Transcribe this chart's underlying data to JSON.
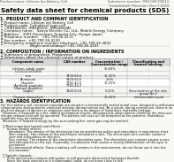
{
  "page_bg": "#f8f8f5",
  "header_left": "Product name: Lithium Ion Battery Cell",
  "header_right": "Substance number: 999-049-00610\nEstablished / Revision: Dec.7.2010",
  "title": "Safety data sheet for chemical products (SDS)",
  "s1_title": "1. PRODUCT AND COMPANY IDENTIFICATION",
  "s1_lines": [
    "・ Product name: Lithium Ion Battery Cell",
    "・ Product code: Cylindrical-type cell",
    "    (IHR18650U, IHR18650L, IHR18650A)",
    "・ Company name:   Sanyo Electric Co., Ltd., Mobile Energy Company",
    "・ Address:   2001 Kamionten, Sumoto-City, Hyogo, Japan",
    "・ Telephone number:   +81-799-26-4111",
    "・ Fax number:  +81-799-26-4120",
    "・ Emergency telephone number (daytime): +81-799-26-3842",
    "                          (Night and holidays) +81-799-26-4101"
  ],
  "s2_title": "2. COMPOSITION / INFORMATION ON INGREDIENTS",
  "s2_prep": "・ Substance or preparation: Preparation",
  "s2_info": "・ Information about the chemical nature of product:",
  "th": [
    "Component name",
    "CAS number",
    "Concentration /\nConcentration range",
    "Classification and\nhazard labeling"
  ],
  "tr": [
    [
      "Lithium cobalt oxide\n(LiCoO₂/CoO(OH))",
      "-",
      "30-60%",
      "-"
    ],
    [
      "Iron",
      "7439-89-6",
      "15-25%",
      "-"
    ],
    [
      "Aluminum",
      "7429-90-5",
      "2-6%",
      "-"
    ],
    [
      "Graphite\n(Artificial graphite)\n(Natural graphite)",
      "7782-42-5\n7782-44-2",
      "10-25%",
      "-"
    ],
    [
      "Copper",
      "7440-50-8",
      "5-15%",
      "Sensitization of the skin\ngroup No.2"
    ],
    [
      "Organic electrolyte",
      "-",
      "10-20%",
      "Inflammable liquid"
    ]
  ],
  "s3_title": "3. HAZARDS IDENTIFICATION",
  "s3_lines": [
    "For this battery cell, chemical materials are stored in a hermetically sealed metal case, designed to withstand",
    "temperatures during electro-chemical reaction during normal use. As a result, during normal use, there is no",
    "physical danger of ignition or explosion and there is no danger of hazardous materials leakage.",
    "  However, if exposed to a fire, added mechanical shocks, decomposed, when electro-chemical dry miss-use,",
    "the gas release vent will be operated. The battery cell case will be breached at fire patterns. Hazardous",
    "materials may be released.",
    "  Moreover, if heated strongly by the surrounding fire, some gas may be emitted.",
    "",
    "  ・ Most important hazard and effects:",
    "      Human health effects:",
    "        Inhalation: The release of the electrolyte has an anesthesia action and stimulates in respiratory tract.",
    "        Skin contact: The release of the electrolyte stimulates a skin. The electrolyte skin contact causes a",
    "        sore and stimulation on the skin.",
    "        Eye contact: The release of the electrolyte stimulates eyes. The electrolyte eye contact causes a sore",
    "        and stimulation on the eye. Especially, a substance that causes a strong inflammation of the eyes is",
    "        contained.",
    "        Environmental effects: Since a battery cell remains in the environment, do not throw out it into the",
    "        environment.",
    "",
    "  ・ Specific hazards:",
    "      If the electrolyte contacts with water, it will generate detrimental hydrogen fluoride.",
    "      Since the base electrolyte is inflammable liquid, do not bring close to fire."
  ],
  "tc": [
    "#333333",
    "#000000",
    "#000000"
  ],
  "gray": "#888888",
  "light_gray": "#cccccc",
  "table_header_bg": "#d8d8d8"
}
